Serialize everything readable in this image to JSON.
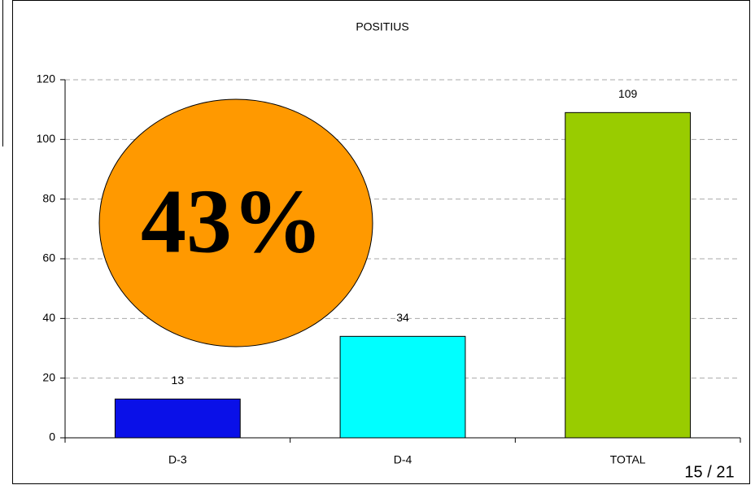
{
  "chart_data": {
    "type": "bar",
    "title": "POSITIUS",
    "categories": [
      "D-3",
      "D-4",
      "TOTAL"
    ],
    "values": [
      13,
      34,
      109
    ],
    "colors": [
      "#0a10e8",
      "#00ffff",
      "#99cc00"
    ],
    "ylim": [
      0,
      120
    ],
    "yticks": [
      0,
      20,
      40,
      60,
      80,
      100,
      120
    ],
    "grid": true,
    "annotation": "43%",
    "annotation_color": "#ff9900",
    "page_number": "15 / 21"
  }
}
